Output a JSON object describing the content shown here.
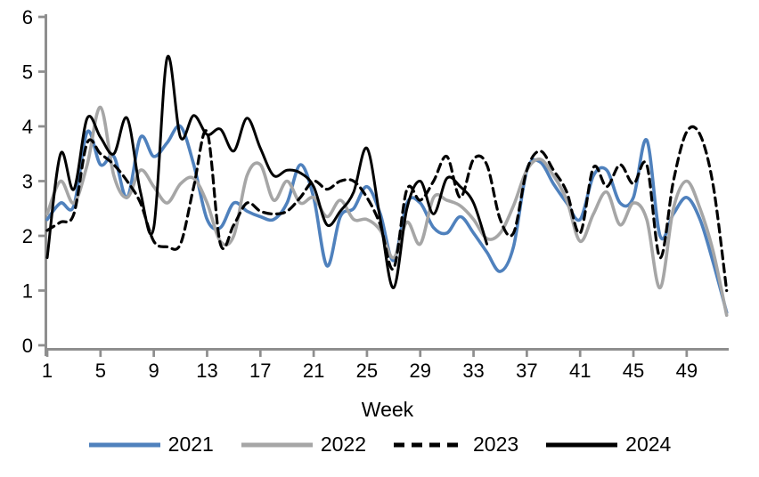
{
  "colors": {
    "axis": "#8E8E8E",
    "text": "#000000",
    "background": "#FFFFFF",
    "series_blue": "#4F81BD",
    "series_gray": "#A6A6A6",
    "series_black": "#000000"
  },
  "chart_data": {
    "type": "line",
    "title": "",
    "xlabel": "Week",
    "ylabel": "",
    "grid": false,
    "legend_position": "bottom",
    "xlim": [
      1,
      52
    ],
    "ylim": [
      0,
      6
    ],
    "x_ticks": [
      1,
      5,
      9,
      13,
      17,
      21,
      25,
      29,
      33,
      37,
      41,
      45,
      49
    ],
    "y_ticks": [
      0,
      1,
      2,
      3,
      4,
      5,
      6
    ],
    "x_start_week": 1,
    "series": [
      {
        "name": "2021",
        "color": "#4F81BD",
        "style": "solid",
        "values": [
          2.3,
          2.6,
          2.55,
          3.9,
          3.3,
          3.45,
          2.7,
          3.8,
          3.45,
          3.7,
          4.0,
          3.3,
          2.3,
          2.15,
          2.6,
          2.45,
          2.35,
          2.3,
          2.6,
          3.3,
          2.7,
          1.45,
          2.35,
          2.5,
          2.9,
          2.4,
          1.55,
          2.6,
          2.6,
          2.15,
          2.05,
          2.35,
          2.05,
          1.7,
          1.35,
          1.8,
          3.2,
          3.35,
          2.95,
          2.6,
          2.3,
          3.1,
          3.2,
          2.6,
          2.7,
          3.75,
          2.0,
          2.4,
          2.7,
          2.3,
          1.5,
          0.6
        ]
      },
      {
        "name": "2022",
        "color": "#A6A6A6",
        "style": "solid",
        "values": [
          2.4,
          3.0,
          2.6,
          3.3,
          4.35,
          3.1,
          2.7,
          3.2,
          2.9,
          2.6,
          2.95,
          3.05,
          2.6,
          1.9,
          2.0,
          3.1,
          3.3,
          2.65,
          3.0,
          2.6,
          2.7,
          2.35,
          2.65,
          2.3,
          2.3,
          2.1,
          1.6,
          2.25,
          1.85,
          2.7,
          2.65,
          2.55,
          2.3,
          1.95,
          2.05,
          2.55,
          3.2,
          3.4,
          3.1,
          2.65,
          1.9,
          2.4,
          2.8,
          2.2,
          2.6,
          2.3,
          1.05,
          2.5,
          3.0,
          2.5,
          1.7,
          0.55
        ]
      },
      {
        "name": "2023",
        "color": "#000000",
        "style": "dashed",
        "values": [
          2.1,
          2.25,
          2.4,
          3.7,
          3.5,
          3.3,
          3.0,
          2.6,
          1.9,
          1.8,
          1.85,
          2.9,
          3.9,
          1.85,
          2.2,
          2.6,
          2.45,
          2.4,
          2.45,
          2.7,
          3.0,
          2.85,
          3.0,
          3.0,
          2.7,
          2.2,
          1.4,
          2.85,
          2.65,
          3.0,
          3.45,
          2.7,
          3.4,
          3.3,
          2.3,
          2.05,
          3.2,
          3.55,
          3.2,
          2.8,
          2.05,
          3.25,
          2.9,
          3.3,
          2.95,
          3.3,
          1.6,
          3.0,
          3.9,
          3.85,
          2.9,
          1.0
        ]
      },
      {
        "name": "2024",
        "color": "#000000",
        "style": "solid",
        "values": [
          1.6,
          3.5,
          2.85,
          4.15,
          3.8,
          3.5,
          4.15,
          2.8,
          2.15,
          5.25,
          3.8,
          4.2,
          3.85,
          3.95,
          3.55,
          4.15,
          3.6,
          3.1,
          3.2,
          3.15,
          2.9,
          2.2,
          2.45,
          2.8,
          3.6,
          2.3,
          1.05,
          2.5,
          3.0,
          2.4,
          3.05,
          2.9,
          2.6,
          1.85
        ]
      }
    ]
  }
}
